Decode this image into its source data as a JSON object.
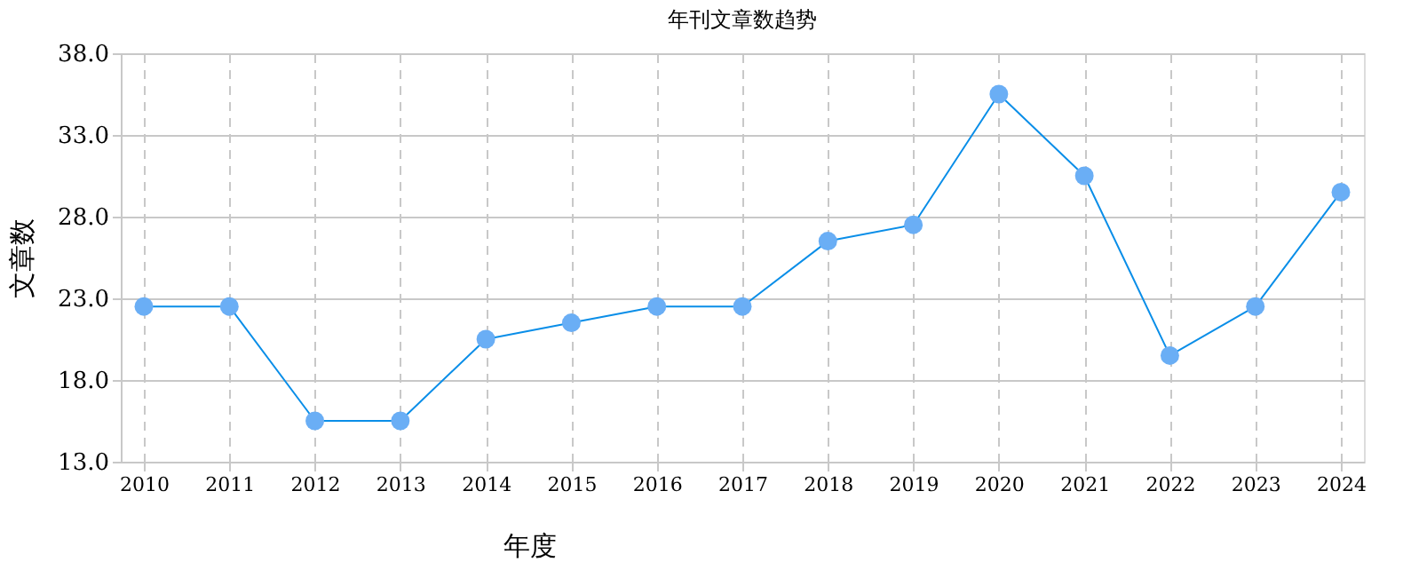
{
  "chart_data": {
    "type": "line",
    "title": "年刊文章数趋势",
    "xlabel": "年度",
    "ylabel": "文章数",
    "categories": [
      "2010",
      "2011",
      "2012",
      "2013",
      "2014",
      "2015",
      "2016",
      "2017",
      "2018",
      "2019",
      "2020",
      "2021",
      "2022",
      "2023",
      "2024"
    ],
    "series": [
      {
        "color": "#0a8ee8",
        "values": [
          22.5,
          22.5,
          15.5,
          15.5,
          20.5,
          21.5,
          22.5,
          22.5,
          26.5,
          27.5,
          35.5,
          30.5,
          19.5,
          22.5,
          29.5
        ]
      }
    ],
    "ylim": [
      13,
      38
    ],
    "yticks": [
      {
        "value": 13,
        "label": "13.0"
      },
      {
        "value": 18,
        "label": "18.0"
      },
      {
        "value": 23,
        "label": "23.0"
      },
      {
        "value": 28,
        "label": "28.0"
      },
      {
        "value": 33,
        "label": "33.0"
      },
      {
        "value": 38,
        "label": "38.0"
      }
    ],
    "grid": true,
    "marker": "circle",
    "line_style": "solid"
  }
}
